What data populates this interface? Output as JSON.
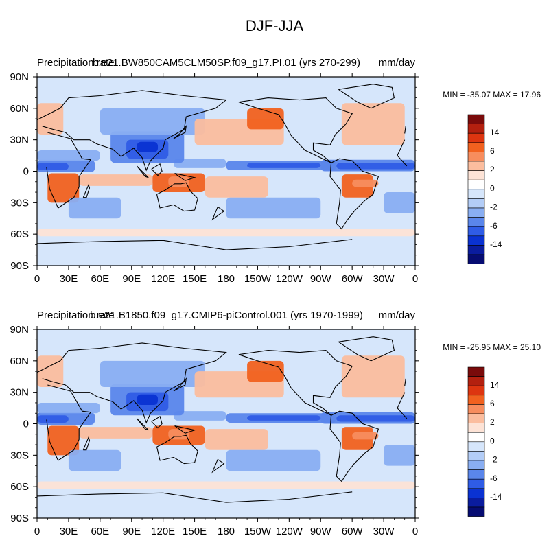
{
  "figure_title": "DJF-JJA",
  "colorbar_labels": [
    "14",
    "6",
    "2",
    "0",
    "-2",
    "-6",
    "-14"
  ],
  "colorbar_colors": [
    "#7a0b0b",
    "#b3200f",
    "#dd3510",
    "#f1611f",
    "#f78d5e",
    "#fbbd9e",
    "#fde3d6",
    "#ffffff",
    "#d6e6fb",
    "#b3cdf7",
    "#89aef2",
    "#5a86eb",
    "#2f5ce6",
    "#0a32d2",
    "#0a1c9e",
    "#060c72"
  ],
  "colors": {
    "ocean_background": "#d6e6fb",
    "land_outline": "#000000"
  },
  "chart_data": [
    {
      "type": "heatmap",
      "projection": "cylindrical-equidistant",
      "left_title": "Precipitation rate",
      "center_title": "b.e21.BW850CAM5CLM50SP.f09_g17.PI.01 (yrs 270-299)",
      "right_title": "mm/day",
      "stats_text": "MIN = -35.07 MAX =  17.96",
      "min": -35.07,
      "max": 17.96,
      "x_range": [
        0,
        360
      ],
      "y_range": [
        -90,
        90
      ],
      "x_tick_labels": [
        "0",
        "30E",
        "60E",
        "90E",
        "120E",
        "150E",
        "180",
        "150W",
        "120W",
        "90W",
        "60W",
        "30W",
        "0"
      ],
      "y_tick_labels": [
        "90N",
        "60N",
        "30N",
        "0",
        "30S",
        "60S",
        "90S"
      ],
      "contour_levels": [
        -14,
        -6,
        -2,
        0,
        2,
        6,
        14
      ]
    },
    {
      "type": "heatmap",
      "projection": "cylindrical-equidistant",
      "left_title": "Precipitation rate",
      "center_title": "b.e21.B1850.f09_g17.CMIP6-piControl.001 (yrs 1970-1999)",
      "right_title": "mm/day",
      "stats_text": "MIN = -25.95 MAX =  25.10",
      "min": -25.95,
      "max": 25.1,
      "x_range": [
        0,
        360
      ],
      "y_range": [
        -90,
        90
      ],
      "x_tick_labels": [
        "0",
        "30E",
        "60E",
        "90E",
        "120E",
        "150E",
        "180",
        "150W",
        "120W",
        "90W",
        "60W",
        "30W",
        "0"
      ],
      "y_tick_labels": [
        "90N",
        "60N",
        "30N",
        "0",
        "30S",
        "60S",
        "90S"
      ],
      "contour_levels": [
        -14,
        -6,
        -2,
        0,
        2,
        6,
        14
      ]
    }
  ]
}
